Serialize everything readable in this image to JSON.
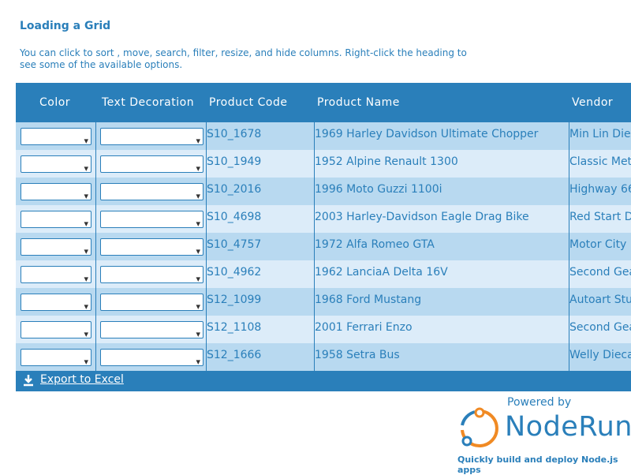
{
  "header": {
    "title": "Loading a Grid",
    "description": "You can click to sort , move, search, filter, resize, and hide columns. Right-click the heading to see some of the available options."
  },
  "table": {
    "columns": [
      "Color",
      "Text Decoration",
      "Product Code",
      "Product Name",
      "Vendor"
    ],
    "rows": [
      [
        "S10_1678",
        "1969 Harley Davidson Ultimate Chopper",
        "Min Lin Die"
      ],
      [
        "S10_1949",
        "1952 Alpine Renault 1300",
        "Classic Met"
      ],
      [
        "S10_2016",
        "1996 Moto Guzzi 1100i",
        "Highway 66"
      ],
      [
        "S10_4698",
        "2003 Harley-Davidson Eagle Drag Bike",
        "Red Start D"
      ],
      [
        "S10_4757",
        "1972 Alfa Romeo GTA",
        "Motor City"
      ],
      [
        "S10_4962",
        "1962 LanciaA Delta 16V",
        "Second Gea"
      ],
      [
        "S12_1099",
        "1968 Ford Mustang",
        "Autoart Stu"
      ],
      [
        "S12_1108",
        "2001 Ferrari Enzo",
        "Second Gea"
      ],
      [
        "S12_1666",
        "1958 Setra Bus",
        "Welly Dieca"
      ]
    ],
    "export_link": "Export to Excel"
  },
  "branding": {
    "powered_by": "Powered by",
    "name": "NodeRun",
    "tagline": "Quickly build and deploy Node.js apps"
  }
}
